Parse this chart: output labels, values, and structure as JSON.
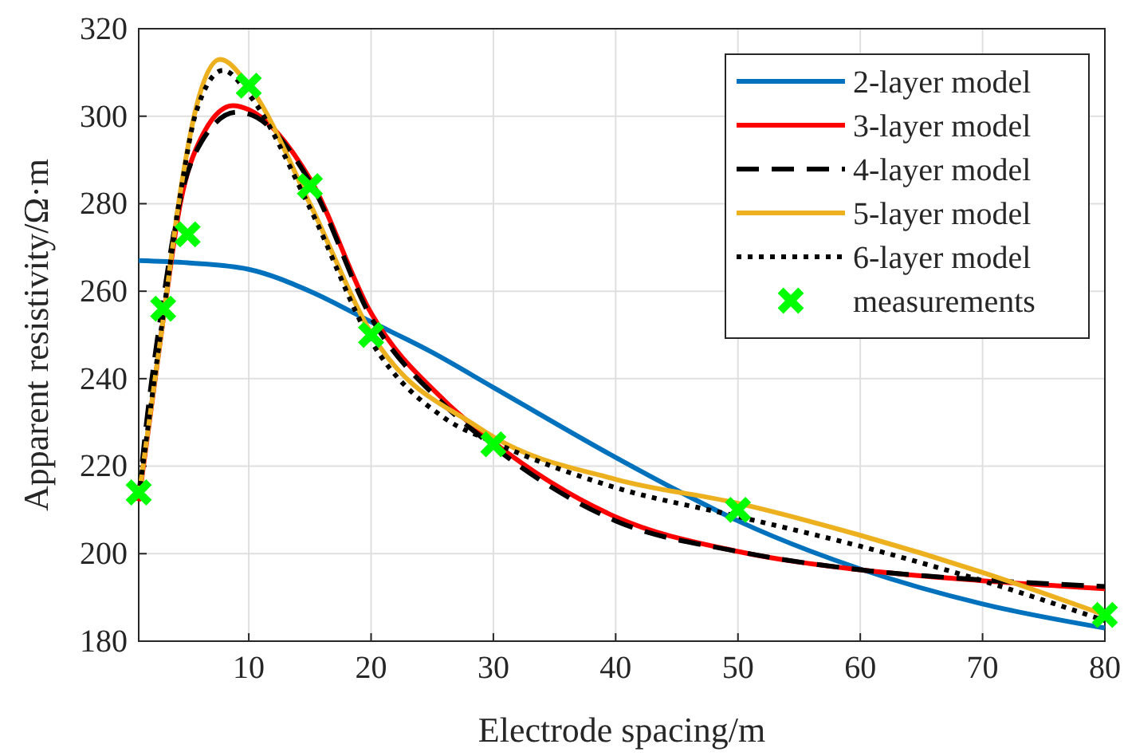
{
  "chart_data": {
    "type": "line",
    "xlabel": "Electrode spacing/m",
    "ylabel": "Apparent resistivity/Ω·m",
    "xlim": [
      1,
      80
    ],
    "ylim": [
      180,
      320
    ],
    "xticks": [
      10,
      20,
      30,
      40,
      50,
      60,
      70,
      80
    ],
    "yticks": [
      180,
      200,
      220,
      240,
      260,
      280,
      300,
      320
    ],
    "grid": true,
    "legend": "top right",
    "series": [
      {
        "name": "2-layer model",
        "line_style": "solid",
        "color": "#0072bd",
        "x": [
          1,
          5,
          10,
          15,
          20,
          25,
          30,
          40,
          45,
          50,
          60,
          70,
          80
        ],
        "values": [
          267,
          266.5,
          265,
          260,
          253,
          246,
          238,
          222,
          214.5,
          207.5,
          196.5,
          188.5,
          183
        ]
      },
      {
        "name": "3-layer model",
        "line_style": "solid",
        "color": "#ff0000",
        "x": [
          1,
          3,
          4.4,
          6.1,
          8.7,
          10,
          15,
          20,
          26,
          30,
          40,
          50,
          60,
          70,
          80
        ],
        "values": [
          212,
          253.5,
          280,
          295,
          302.4,
          301.5,
          285.7,
          255,
          235,
          225.5,
          208.4,
          200.5,
          196.3,
          193.8,
          192
        ]
      },
      {
        "name": "4-layer model",
        "line_style": "dashed",
        "color": "#000000",
        "x": [
          1,
          1.6,
          3,
          4.4,
          6.1,
          9,
          10,
          15,
          20,
          26,
          30,
          40,
          50,
          60,
          70,
          80
        ],
        "values": [
          213,
          229,
          258,
          281,
          294,
          300.9,
          300.5,
          285,
          254,
          234,
          224.5,
          207.5,
          200.5,
          196.3,
          194,
          192.5
        ]
      },
      {
        "name": "5-layer model",
        "line_style": "solid",
        "color": "#edb120",
        "x": [
          1,
          3,
          4.4,
          5.7,
          7.65,
          10,
          15,
          20,
          28.7,
          30,
          40,
          50,
          60,
          70,
          80
        ],
        "values": [
          212.7,
          253.5,
          282.6,
          302,
          313,
          307,
          280,
          250.4,
          229,
          226.7,
          217,
          211.5,
          204.2,
          195.7,
          186
        ]
      },
      {
        "name": "6-layer model",
        "line_style": "dotted",
        "color": "#000000",
        "x": [
          1,
          3,
          4.4,
          5.7,
          7.9,
          10,
          15,
          20,
          26,
          30,
          40,
          50,
          60,
          70,
          80
        ],
        "values": [
          213,
          254.5,
          282,
          301,
          310.5,
          305,
          279,
          248.6,
          231,
          225.5,
          215.1,
          208.5,
          201.7,
          193.8,
          184.7
        ]
      },
      {
        "name": "measurements",
        "type": "scatter",
        "marker": "cross",
        "color": "#00ff00",
        "x": [
          1,
          3,
          5,
          10,
          15,
          20,
          30,
          50,
          80
        ],
        "values": [
          214,
          256,
          273,
          307,
          284,
          250,
          225,
          210,
          186
        ]
      }
    ]
  }
}
